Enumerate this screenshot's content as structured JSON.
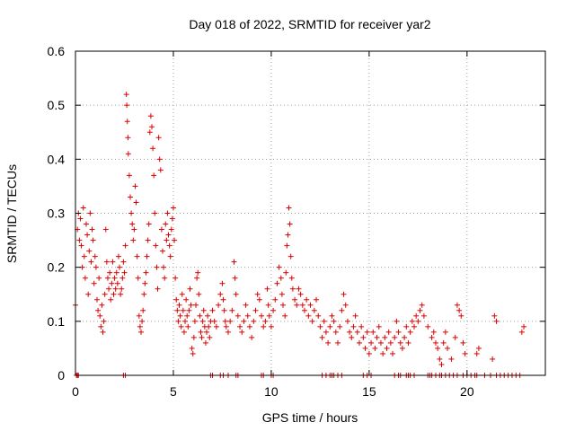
{
  "chart_data": {
    "type": "scatter",
    "title": "Day 018 of 2022, SRMTID for receiver yar2",
    "xlabel": "GPS time / hours",
    "ylabel": "SRMTID / TECUs",
    "xlim": [
      0,
      24
    ],
    "ylim": [
      0,
      0.6
    ],
    "xticks": [
      0,
      5,
      10,
      15,
      20
    ],
    "xtick_labels": [
      "0",
      "5",
      "10",
      "15",
      "20"
    ],
    "yticks": [
      0,
      0.1,
      0.2,
      0.3,
      0.4,
      0.5,
      0.6
    ],
    "ytick_labels": [
      "0",
      "0.1",
      "0.2",
      "0.3",
      "0.4",
      "0.5",
      "0.6"
    ],
    "grid": true,
    "marker": "+",
    "color": "#dd0000",
    "series": [
      {
        "name": "SRMTID",
        "points": [
          [
            0.0,
            0.13
          ],
          [
            0.1,
            0.27
          ],
          [
            0.15,
            0.3
          ],
          [
            0.2,
            0.25
          ],
          [
            0.25,
            0.29
          ],
          [
            0.3,
            0.24
          ],
          [
            0.35,
            0.2
          ],
          [
            0.4,
            0.31
          ],
          [
            0.45,
            0.22
          ],
          [
            0.5,
            0.18
          ],
          [
            0.55,
            0.28
          ],
          [
            0.6,
            0.26
          ],
          [
            0.65,
            0.15
          ],
          [
            0.7,
            0.23
          ],
          [
            0.75,
            0.3
          ],
          [
            0.8,
            0.21
          ],
          [
            0.85,
            0.27
          ],
          [
            0.9,
            0.25
          ],
          [
            0.95,
            0.17
          ],
          [
            1.0,
            0.22
          ],
          [
            1.05,
            0.2
          ],
          [
            1.1,
            0.14
          ],
          [
            1.15,
            0.12
          ],
          [
            1.2,
            0.18
          ],
          [
            1.25,
            0.11
          ],
          [
            1.3,
            0.09
          ],
          [
            1.35,
            0.13
          ],
          [
            1.4,
            0.08
          ],
          [
            1.45,
            0.1
          ],
          [
            1.5,
            0.15
          ],
          [
            1.55,
            0.27
          ],
          [
            1.6,
            0.21
          ],
          [
            1.65,
            0.18
          ],
          [
            1.7,
            0.16
          ],
          [
            1.75,
            0.19
          ],
          [
            1.8,
            0.14
          ],
          [
            1.85,
            0.17
          ],
          [
            1.9,
            0.21
          ],
          [
            1.95,
            0.15
          ],
          [
            2.0,
            0.18
          ],
          [
            2.05,
            0.16
          ],
          [
            2.1,
            0.19
          ],
          [
            2.15,
            0.17
          ],
          [
            2.2,
            0.22
          ],
          [
            2.25,
            0.2
          ],
          [
            2.3,
            0.15
          ],
          [
            2.35,
            0.16
          ],
          [
            2.4,
            0.18
          ],
          [
            2.45,
            0.21
          ],
          [
            2.5,
            0.19
          ],
          [
            2.55,
            0.24
          ],
          [
            2.6,
            0.52
          ],
          [
            2.62,
            0.5
          ],
          [
            2.65,
            0.47
          ],
          [
            2.68,
            0.44
          ],
          [
            2.7,
            0.41
          ],
          [
            2.75,
            0.37
          ],
          [
            2.8,
            0.33
          ],
          [
            2.85,
            0.3
          ],
          [
            2.9,
            0.28
          ],
          [
            2.95,
            0.25
          ],
          [
            3.0,
            0.27
          ],
          [
            3.05,
            0.35
          ],
          [
            3.1,
            0.32
          ],
          [
            3.15,
            0.22
          ],
          [
            3.2,
            0.18
          ],
          [
            3.25,
            0.11
          ],
          [
            3.3,
            0.09
          ],
          [
            3.35,
            0.08
          ],
          [
            3.4,
            0.1
          ],
          [
            3.45,
            0.12
          ],
          [
            3.5,
            0.15
          ],
          [
            3.55,
            0.17
          ],
          [
            3.6,
            0.19
          ],
          [
            3.65,
            0.22
          ],
          [
            3.7,
            0.25
          ],
          [
            3.75,
            0.28
          ],
          [
            3.8,
            0.45
          ],
          [
            3.85,
            0.48
          ],
          [
            3.9,
            0.46
          ],
          [
            3.95,
            0.42
          ],
          [
            4.0,
            0.37
          ],
          [
            4.05,
            0.3
          ],
          [
            4.1,
            0.24
          ],
          [
            4.15,
            0.2
          ],
          [
            4.2,
            0.16
          ],
          [
            4.25,
            0.44
          ],
          [
            4.3,
            0.4
          ],
          [
            4.35,
            0.38
          ],
          [
            4.4,
            0.27
          ],
          [
            4.45,
            0.23
          ],
          [
            4.5,
            0.2
          ],
          [
            4.55,
            0.18
          ],
          [
            4.6,
            0.28
          ],
          [
            4.65,
            0.25
          ],
          [
            4.7,
            0.3
          ],
          [
            4.75,
            0.26
          ],
          [
            4.8,
            0.24
          ],
          [
            4.85,
            0.22
          ],
          [
            4.9,
            0.27
          ],
          [
            4.95,
            0.29
          ],
          [
            5.0,
            0.31
          ],
          [
            5.05,
            0.25
          ],
          [
            5.1,
            0.18
          ],
          [
            5.15,
            0.14
          ],
          [
            5.2,
            0.12
          ],
          [
            5.25,
            0.1
          ],
          [
            5.3,
            0.13
          ],
          [
            5.35,
            0.11
          ],
          [
            5.4,
            0.09
          ],
          [
            5.45,
            0.15
          ],
          [
            5.5,
            0.12
          ],
          [
            5.55,
            0.08
          ],
          [
            5.6,
            0.1
          ],
          [
            5.65,
            0.14
          ],
          [
            5.7,
            0.11
          ],
          [
            5.75,
            0.09
          ],
          [
            5.8,
            0.12
          ],
          [
            5.85,
            0.16
          ],
          [
            5.9,
            0.13
          ],
          [
            5.95,
            0.05
          ],
          [
            6.0,
            0.04
          ],
          [
            6.05,
            0.07
          ],
          [
            6.1,
            0.1
          ],
          [
            6.15,
            0.13
          ],
          [
            6.2,
            0.18
          ],
          [
            6.25,
            0.19
          ],
          [
            6.3,
            0.15
          ],
          [
            6.35,
            0.11
          ],
          [
            6.4,
            0.08
          ],
          [
            6.45,
            0.07
          ],
          [
            6.5,
            0.1
          ],
          [
            6.55,
            0.12
          ],
          [
            6.6,
            0.09
          ],
          [
            6.65,
            0.06
          ],
          [
            6.7,
            0.08
          ],
          [
            6.75,
            0.11
          ],
          [
            6.8,
            0.09
          ],
          [
            6.85,
            0.07
          ],
          [
            6.9,
            0.1
          ],
          [
            7.0,
            0.12
          ],
          [
            7.1,
            0.1
          ],
          [
            7.2,
            0.09
          ],
          [
            7.3,
            0.13
          ],
          [
            7.4,
            0.15
          ],
          [
            7.5,
            0.17
          ],
          [
            7.55,
            0.14
          ],
          [
            7.6,
            0.12
          ],
          [
            7.65,
            0.1
          ],
          [
            7.7,
            0.09
          ],
          [
            7.8,
            0.08
          ],
          [
            7.9,
            0.1
          ],
          [
            8.0,
            0.12
          ],
          [
            8.1,
            0.21
          ],
          [
            8.15,
            0.18
          ],
          [
            8.2,
            0.15
          ],
          [
            8.3,
            0.11
          ],
          [
            8.4,
            0.09
          ],
          [
            8.5,
            0.08
          ],
          [
            8.6,
            0.1
          ],
          [
            8.7,
            0.13
          ],
          [
            8.8,
            0.11
          ],
          [
            8.9,
            0.09
          ],
          [
            9.0,
            0.07
          ],
          [
            9.1,
            0.1
          ],
          [
            9.2,
            0.12
          ],
          [
            9.3,
            0.15
          ],
          [
            9.4,
            0.14
          ],
          [
            9.5,
            0.11
          ],
          [
            9.6,
            0.09
          ],
          [
            9.7,
            0.1
          ],
          [
            9.8,
            0.16
          ],
          [
            9.85,
            0.13
          ],
          [
            9.9,
            0.11
          ],
          [
            10.0,
            0.09
          ],
          [
            10.1,
            0.12
          ],
          [
            10.2,
            0.14
          ],
          [
            10.3,
            0.17
          ],
          [
            10.4,
            0.2
          ],
          [
            10.5,
            0.18
          ],
          [
            10.55,
            0.15
          ],
          [
            10.6,
            0.13
          ],
          [
            10.7,
            0.11
          ],
          [
            10.75,
            0.19
          ],
          [
            10.8,
            0.24
          ],
          [
            10.85,
            0.26
          ],
          [
            10.9,
            0.31
          ],
          [
            10.95,
            0.28
          ],
          [
            11.0,
            0.22
          ],
          [
            11.05,
            0.18
          ],
          [
            11.1,
            0.16
          ],
          [
            11.2,
            0.14
          ],
          [
            11.3,
            0.13
          ],
          [
            11.4,
            0.16
          ],
          [
            11.5,
            0.15
          ],
          [
            11.6,
            0.13
          ],
          [
            11.7,
            0.12
          ],
          [
            11.8,
            0.14
          ],
          [
            11.9,
            0.11
          ],
          [
            12.0,
            0.13
          ],
          [
            12.1,
            0.1
          ],
          [
            12.2,
            0.12
          ],
          [
            12.3,
            0.14
          ],
          [
            12.4,
            0.11
          ],
          [
            12.5,
            0.09
          ],
          [
            12.6,
            0.07
          ],
          [
            12.7,
            0.1
          ],
          [
            12.8,
            0.08
          ],
          [
            12.9,
            0.06
          ],
          [
            13.0,
            0.09
          ],
          [
            13.1,
            0.11
          ],
          [
            13.2,
            0.1
          ],
          [
            13.3,
            0.08
          ],
          [
            13.4,
            0.06
          ],
          [
            13.5,
            0.09
          ],
          [
            13.6,
            0.12
          ],
          [
            13.7,
            0.15
          ],
          [
            13.8,
            0.13
          ],
          [
            13.9,
            0.1
          ],
          [
            14.0,
            0.08
          ],
          [
            14.1,
            0.07
          ],
          [
            14.2,
            0.09
          ],
          [
            14.3,
            0.11
          ],
          [
            14.4,
            0.08
          ],
          [
            14.5,
            0.06
          ],
          [
            14.6,
            0.09
          ],
          [
            14.7,
            0.07
          ],
          [
            14.8,
            0.05
          ],
          [
            14.9,
            0.08
          ],
          [
            15.0,
            0.04
          ],
          [
            15.1,
            0.06
          ],
          [
            15.2,
            0.08
          ],
          [
            15.3,
            0.05
          ],
          [
            15.4,
            0.07
          ],
          [
            15.5,
            0.09
          ],
          [
            15.6,
            0.06
          ],
          [
            15.7,
            0.04
          ],
          [
            15.8,
            0.07
          ],
          [
            15.9,
            0.05
          ],
          [
            16.0,
            0.08
          ],
          [
            16.1,
            0.06
          ],
          [
            16.2,
            0.04
          ],
          [
            16.3,
            0.07
          ],
          [
            16.4,
            0.1
          ],
          [
            16.5,
            0.08
          ],
          [
            16.6,
            0.06
          ],
          [
            16.7,
            0.05
          ],
          [
            16.8,
            0.07
          ],
          [
            16.9,
            0.09
          ],
          [
            17.0,
            0.06
          ],
          [
            17.1,
            0.08
          ],
          [
            17.2,
            0.1
          ],
          [
            17.3,
            0.09
          ],
          [
            17.4,
            0.11
          ],
          [
            17.5,
            0.1
          ],
          [
            17.6,
            0.12
          ],
          [
            17.7,
            0.13
          ],
          [
            17.8,
            0.11
          ],
          [
            18.0,
            0.09
          ],
          [
            18.2,
            0.07
          ],
          [
            18.3,
            0.08
          ],
          [
            18.4,
            0.06
          ],
          [
            18.5,
            0.05
          ],
          [
            18.6,
            0.03
          ],
          [
            18.7,
            0.02
          ],
          [
            18.8,
            0.06
          ],
          [
            18.9,
            0.08
          ],
          [
            19.0,
            0.05
          ],
          [
            19.2,
            0.03
          ],
          [
            19.4,
            0.07
          ],
          [
            19.5,
            0.13
          ],
          [
            19.6,
            0.12
          ],
          [
            19.7,
            0.11
          ],
          [
            19.8,
            0.06
          ],
          [
            19.9,
            0.04
          ],
          [
            20.5,
            0.04
          ],
          [
            20.6,
            0.05
          ],
          [
            21.3,
            0.03
          ],
          [
            21.4,
            0.11
          ],
          [
            21.5,
            0.1
          ],
          [
            22.8,
            0.08
          ],
          [
            22.9,
            0.09
          ]
        ],
        "zero_points": [
          0.05,
          0.1,
          0.15,
          2.45,
          2.55,
          6.9,
          7.0,
          7.4,
          7.55,
          7.8,
          8.2,
          8.3,
          9.5,
          9.6,
          10.0,
          10.1,
          12.6,
          12.8,
          13.0,
          13.1,
          13.2,
          13.4,
          13.6,
          14.7,
          14.9,
          15.1,
          16.3,
          16.5,
          16.6,
          16.9,
          17.0,
          17.1,
          17.3,
          18.0,
          18.1,
          18.2,
          18.4,
          18.6,
          18.7,
          18.9,
          19.1,
          19.3,
          19.5,
          19.8,
          20.0,
          20.2,
          20.4,
          20.5,
          20.9,
          21.2,
          21.5,
          21.7,
          21.9,
          22.1,
          22.3,
          22.5,
          22.7
        ]
      }
    ]
  }
}
